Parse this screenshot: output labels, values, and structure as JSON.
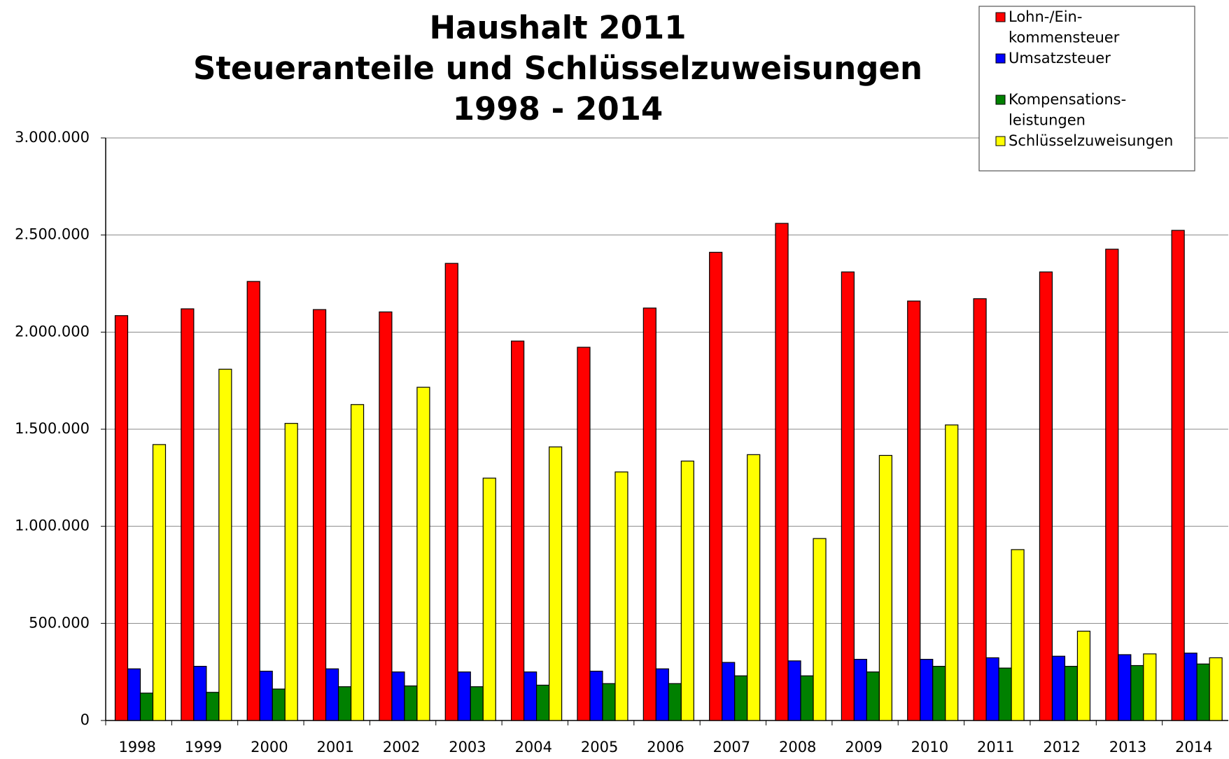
{
  "chart_data": {
    "type": "bar",
    "title": [
      "Haushalt 2011",
      "Steueranteile und Schlüsselzuweisungen",
      "1998 - 2014"
    ],
    "categories": [
      "1998",
      "1999",
      "2000",
      "2001",
      "2002",
      "2003",
      "2004",
      "2005",
      "2006",
      "2007",
      "2008",
      "2009",
      "2010",
      "2011",
      "2012",
      "2013",
      "2014"
    ],
    "series": [
      {
        "name": "Lohn-/Ein- kommensteuer",
        "color": "#ff0000",
        "values": [
          2085000,
          2120000,
          2261000,
          2116000,
          2104000,
          2354000,
          1954000,
          1922000,
          2124000,
          2411000,
          2560000,
          2310000,
          2160000,
          2172000,
          2310000,
          2427000,
          2524000
        ]
      },
      {
        "name": "Umsatzsteuer",
        "color": "#0000ff",
        "values": [
          266000,
          279000,
          254000,
          266000,
          250000,
          250000,
          250000,
          254000,
          266000,
          299000,
          307000,
          315000,
          315000,
          323000,
          331000,
          339000,
          347000
        ]
      },
      {
        "name": "Kompensations- leistungen",
        "color": "#008000",
        "values": [
          141000,
          145000,
          162000,
          174000,
          178000,
          174000,
          182000,
          190000,
          190000,
          230000,
          230000,
          250000,
          279000,
          270000,
          279000,
          283000,
          291000
        ]
      },
      {
        "name": "Schlüsselzuweisungen",
        "color": "#ffff00",
        "values": [
          1421000,
          1809000,
          1530000,
          1627000,
          1716000,
          1248000,
          1409000,
          1280000,
          1336000,
          1369000,
          937000,
          1365000,
          1522000,
          880000,
          460000,
          343000,
          323000
        ]
      }
    ],
    "ylim": [
      0,
      3000000
    ],
    "yticks": [
      0,
      {
        "value": 500000,
        "label": "500.000"
      },
      {
        "value": 1000000,
        "label": "1.000.000"
      },
      {
        "value": 1500000,
        "label": "1.500.000"
      },
      {
        "value": 2000000,
        "label": "2.000.000"
      },
      {
        "value": 2500000,
        "label": "2.500.000"
      },
      {
        "value": 3000000,
        "label": "3.000.000"
      }
    ],
    "grid": true,
    "legend": "top-right"
  }
}
